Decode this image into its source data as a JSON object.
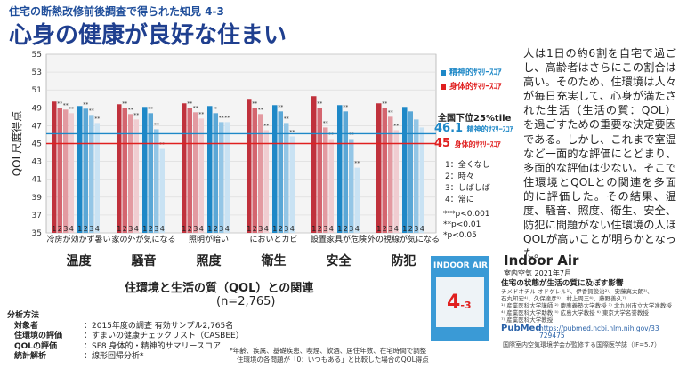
{
  "header": {
    "subtitle": "住宅の断熱改修前後調査で得られた知見 4-3",
    "title": "心身の健康が良好な住まい"
  },
  "chart_data": {
    "type": "bar",
    "ylabel": "QOL尺度得点",
    "ylim": [
      35,
      55
    ],
    "yticks": [
      35,
      37,
      39,
      41,
      43,
      45,
      47,
      49,
      51,
      53,
      55
    ],
    "grid": true,
    "legend": [
      {
        "name": "精神的ｻﾏﾘｰｽｺｱ",
        "color": "#1e88c7"
      },
      {
        "name": "身体的ｻﾏﾘｰｽｺｱ",
        "color": "#e02020"
      }
    ],
    "category_groups": [
      "温度",
      "騒音",
      "照度",
      "衛生",
      "安全",
      "防犯"
    ],
    "conditions": [
      "冷房が効かず暑い",
      "家の外が気になる",
      "照明が暗い",
      "においとカビ",
      "設置家具が危険",
      "外の視線が気になる"
    ],
    "response_levels": [
      "1",
      "2",
      "3",
      "4"
    ],
    "series": [
      {
        "name": "身体的ｻﾏﾘｰｽｺｱ",
        "values": [
          [
            49.7,
            49.0,
            48.8,
            48.4
          ],
          [
            49.4,
            49.0,
            48.3,
            47.7
          ],
          [
            49.5,
            49.0,
            48.5,
            47.8
          ],
          [
            50.0,
            49.0,
            48.3,
            46.5
          ],
          [
            50.3,
            49.0,
            46.8,
            45.5
          ],
          [
            49.5,
            49.0,
            48.0,
            46.5
          ]
        ]
      },
      {
        "name": "精神的ｻﾏﾘｰｽｺｱ",
        "values": [
          [
            49.2,
            48.9,
            48.2,
            47.3
          ],
          [
            49.1,
            48.4,
            46.6,
            44.4
          ],
          [
            49.2,
            48.4,
            47.4,
            47.4
          ],
          [
            49.3,
            48.6,
            47.3,
            45.8
          ],
          [
            49.3,
            48.6,
            45.5,
            42.3
          ],
          [
            49.1,
            48.6,
            47.7,
            46.8
          ]
        ]
      }
    ],
    "significance_labels": [
      "**",
      "**",
      "**",
      "**",
      "**",
      "**",
      "**",
      "**",
      "**",
      "**",
      "**",
      "**",
      "**",
      "**",
      "**",
      "*",
      "**",
      "**",
      "**",
      "**",
      "**",
      "**",
      "**",
      "**",
      "**",
      "**",
      "**",
      "**",
      "**",
      "**",
      "**",
      "**",
      "**"
    ],
    "reference_lines": {
      "title": "全国下位25%tile",
      "mental": {
        "value": 46.1,
        "label": "精神的ｻﾏﾘｰｽｺｱ",
        "color": "#1e88c7"
      },
      "physical": {
        "value": 45.0,
        "label": "身体的ｻﾏﾘｰｽｺｱ",
        "color": "#e02020"
      }
    }
  },
  "scale_legend": [
    "1：全くなし",
    "2：時々",
    "3：しばしば",
    "4：常に"
  ],
  "significance_legend": [
    "***p<0.001",
    "**p<0.01",
    "*p<0.05"
  ],
  "relation": {
    "title": "住環境と生活の質（QOL）との関連",
    "n": "(n=2,765)"
  },
  "methods": {
    "heading": "分析方法",
    "rows": [
      {
        "key": "対象者",
        "value": "：2015年度の調査 有効サンプル2,765名"
      },
      {
        "key": "住環境の評価",
        "value": "：すまいの健康チェックリスト（CASBEE）"
      },
      {
        "key": "QOLの評価",
        "value": "：SF8 身体的・精神的サマリースコア"
      },
      {
        "key": "統計解析",
        "value": "：線形回帰分析*"
      }
    ],
    "footnote": [
      "*年齢、疾属、基礎疾患、喫煙、飲酒、居住年数、在宅時間で調整",
      "住環境の各問題が「0：いつもある」と比較した場合のQOL得点"
    ]
  },
  "side_text": "人は1日の約6割を自宅で過ごし、高齢者はさらにこの割合は高い。そのため、住環境は人々が毎日充実して、心身が満たされた生活（生活の質：QOL）を過ごすための重要な決定要因である。しかし、これまで室温など一面的な評価にとどまり、多面的な評価は少ない。そこで住環境とQOLとの関連を多面的に評価した。その結果、温度、騒音、照度、衛生、安全、防犯に問題がない住環境の人ほQOLが高いことが明らかとなった。",
  "publication": {
    "cover_title": "INDOOR AIR",
    "cover_number": "4",
    "cover_suffix": "-3",
    "journal": "Indoor Air",
    "meta": "室内空気 2021年7月",
    "article_title": "住宅の状態が生活の質に及ぼす影響",
    "authors": [
      "チメドオチル オドゲレル¹⁾、伊香賀俊治²⁾、安藤真太朗³⁾、",
      "石丸知宏⁴⁾、久保達彦⁵⁾、村上周三⁶⁾、藤野善久⁷⁾",
      "¹⁾ 産業医科大学講師 ²⁾ 慶應義塾大学教授 ³⁾ 北九州市立大学准教授",
      "⁴⁾ 産業医科大学助教 ⁵⁾ 広島大学教授 ⁶⁾ 東京大学名誉教授",
      "⁷⁾ 産業医科大学教授"
    ],
    "pubmed": "PubMed",
    "url": [
      "https://pubmed.ncbi.nlm.nih.gov/33",
      "729475"
    ],
    "footer": "国際室内空気環境学会が監修する国際医学誌（IF=5.7）"
  }
}
